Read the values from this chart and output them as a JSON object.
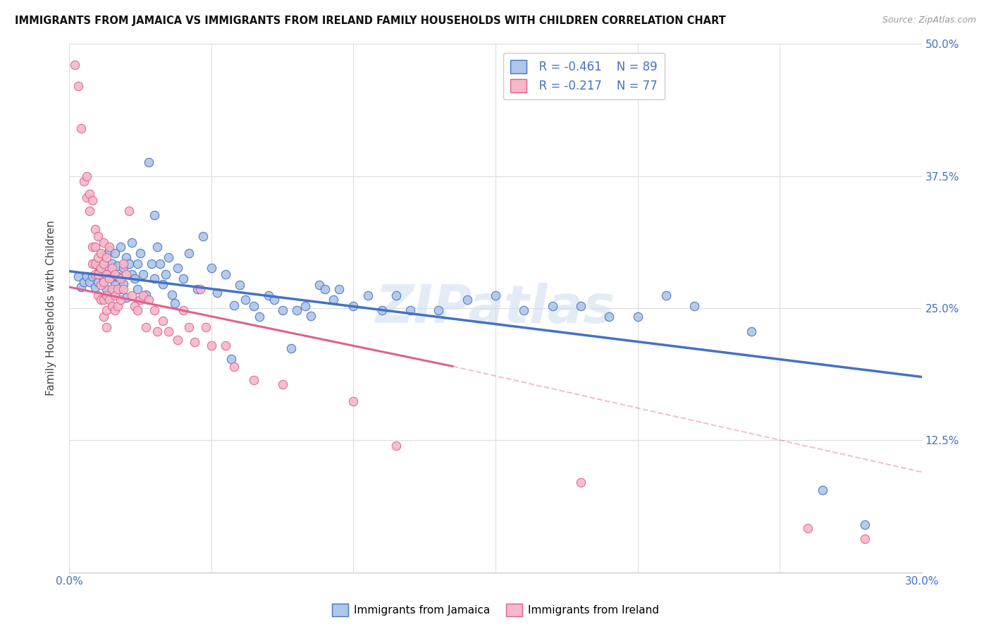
{
  "title": "IMMIGRANTS FROM JAMAICA VS IMMIGRANTS FROM IRELAND FAMILY HOUSEHOLDS WITH CHILDREN CORRELATION CHART",
  "source": "Source: ZipAtlas.com",
  "ylabel": "Family Households with Children",
  "xmin": 0.0,
  "xmax": 0.3,
  "ymin": 0.0,
  "ymax": 0.5,
  "yticks": [
    0.0,
    0.125,
    0.25,
    0.375,
    0.5
  ],
  "ytick_labels": [
    "",
    "12.5%",
    "25.0%",
    "37.5%",
    "50.0%"
  ],
  "xticks": [
    0.0,
    0.05,
    0.1,
    0.15,
    0.2,
    0.25,
    0.3
  ],
  "xtick_labels": [
    "0.0%",
    "",
    "",
    "",
    "",
    "",
    "30.0%"
  ],
  "jamaica_color": "#aec6e8",
  "ireland_color": "#f4b8c8",
  "jamaica_line_color": "#4472c4",
  "ireland_line_color": "#e06090",
  "legend_r_jamaica": "R = -0.461",
  "legend_n_jamaica": "N = 89",
  "legend_r_ireland": "R = -0.217",
  "legend_n_ireland": "N = 77",
  "legend_label_jamaica": "Immigrants from Jamaica",
  "legend_label_ireland": "Immigrants from Ireland",
  "watermark": "ZIPatlas",
  "jamaica_line": [
    0.0,
    0.285,
    0.3,
    0.185
  ],
  "ireland_line_solid": [
    0.0,
    0.27,
    0.135,
    0.195
  ],
  "ireland_line_dashed": [
    0.135,
    0.195,
    0.3,
    0.095
  ],
  "jamaica_points": [
    [
      0.003,
      0.28
    ],
    [
      0.004,
      0.27
    ],
    [
      0.005,
      0.275
    ],
    [
      0.006,
      0.28
    ],
    [
      0.007,
      0.275
    ],
    [
      0.008,
      0.28
    ],
    [
      0.009,
      0.27
    ],
    [
      0.01,
      0.29
    ],
    [
      0.01,
      0.275
    ],
    [
      0.011,
      0.285
    ],
    [
      0.012,
      0.3
    ],
    [
      0.012,
      0.278
    ],
    [
      0.013,
      0.288
    ],
    [
      0.013,
      0.268
    ],
    [
      0.014,
      0.305
    ],
    [
      0.014,
      0.282
    ],
    [
      0.015,
      0.292
    ],
    [
      0.015,
      0.278
    ],
    [
      0.016,
      0.302
    ],
    [
      0.016,
      0.272
    ],
    [
      0.017,
      0.29
    ],
    [
      0.017,
      0.28
    ],
    [
      0.018,
      0.268
    ],
    [
      0.018,
      0.308
    ],
    [
      0.019,
      0.288
    ],
    [
      0.019,
      0.273
    ],
    [
      0.02,
      0.298
    ],
    [
      0.02,
      0.26
    ],
    [
      0.021,
      0.292
    ],
    [
      0.022,
      0.282
    ],
    [
      0.022,
      0.312
    ],
    [
      0.023,
      0.278
    ],
    [
      0.024,
      0.268
    ],
    [
      0.024,
      0.292
    ],
    [
      0.025,
      0.302
    ],
    [
      0.026,
      0.282
    ],
    [
      0.027,
      0.263
    ],
    [
      0.028,
      0.388
    ],
    [
      0.029,
      0.292
    ],
    [
      0.03,
      0.338
    ],
    [
      0.03,
      0.278
    ],
    [
      0.031,
      0.308
    ],
    [
      0.032,
      0.292
    ],
    [
      0.033,
      0.273
    ],
    [
      0.034,
      0.282
    ],
    [
      0.035,
      0.298
    ],
    [
      0.036,
      0.263
    ],
    [
      0.037,
      0.255
    ],
    [
      0.038,
      0.288
    ],
    [
      0.04,
      0.278
    ],
    [
      0.042,
      0.302
    ],
    [
      0.045,
      0.268
    ],
    [
      0.047,
      0.318
    ],
    [
      0.05,
      0.288
    ],
    [
      0.052,
      0.265
    ],
    [
      0.055,
      0.282
    ],
    [
      0.057,
      0.202
    ],
    [
      0.058,
      0.253
    ],
    [
      0.06,
      0.272
    ],
    [
      0.062,
      0.258
    ],
    [
      0.065,
      0.252
    ],
    [
      0.067,
      0.242
    ],
    [
      0.07,
      0.262
    ],
    [
      0.072,
      0.258
    ],
    [
      0.075,
      0.248
    ],
    [
      0.078,
      0.212
    ],
    [
      0.08,
      0.248
    ],
    [
      0.083,
      0.252
    ],
    [
      0.085,
      0.243
    ],
    [
      0.088,
      0.272
    ],
    [
      0.09,
      0.268
    ],
    [
      0.093,
      0.258
    ],
    [
      0.095,
      0.268
    ],
    [
      0.1,
      0.252
    ],
    [
      0.105,
      0.262
    ],
    [
      0.11,
      0.248
    ],
    [
      0.115,
      0.262
    ],
    [
      0.12,
      0.248
    ],
    [
      0.13,
      0.248
    ],
    [
      0.14,
      0.258
    ],
    [
      0.15,
      0.262
    ],
    [
      0.16,
      0.248
    ],
    [
      0.17,
      0.252
    ],
    [
      0.18,
      0.252
    ],
    [
      0.19,
      0.242
    ],
    [
      0.2,
      0.242
    ],
    [
      0.21,
      0.262
    ],
    [
      0.22,
      0.252
    ],
    [
      0.24,
      0.228
    ],
    [
      0.265,
      0.078
    ],
    [
      0.28,
      0.045
    ]
  ],
  "ireland_points": [
    [
      0.002,
      0.48
    ],
    [
      0.003,
      0.46
    ],
    [
      0.004,
      0.42
    ],
    [
      0.005,
      0.37
    ],
    [
      0.006,
      0.355
    ],
    [
      0.006,
      0.375
    ],
    [
      0.007,
      0.358
    ],
    [
      0.007,
      0.342
    ],
    [
      0.008,
      0.352
    ],
    [
      0.008,
      0.308
    ],
    [
      0.008,
      0.292
    ],
    [
      0.009,
      0.325
    ],
    [
      0.009,
      0.308
    ],
    [
      0.009,
      0.292
    ],
    [
      0.009,
      0.282
    ],
    [
      0.01,
      0.318
    ],
    [
      0.01,
      0.298
    ],
    [
      0.01,
      0.282
    ],
    [
      0.01,
      0.262
    ],
    [
      0.011,
      0.302
    ],
    [
      0.011,
      0.288
    ],
    [
      0.011,
      0.272
    ],
    [
      0.011,
      0.258
    ],
    [
      0.012,
      0.312
    ],
    [
      0.012,
      0.292
    ],
    [
      0.012,
      0.275
    ],
    [
      0.012,
      0.258
    ],
    [
      0.012,
      0.242
    ],
    [
      0.013,
      0.298
    ],
    [
      0.013,
      0.282
    ],
    [
      0.013,
      0.262
    ],
    [
      0.013,
      0.248
    ],
    [
      0.013,
      0.232
    ],
    [
      0.014,
      0.308
    ],
    [
      0.014,
      0.278
    ],
    [
      0.014,
      0.258
    ],
    [
      0.015,
      0.288
    ],
    [
      0.015,
      0.268
    ],
    [
      0.015,
      0.252
    ],
    [
      0.016,
      0.282
    ],
    [
      0.016,
      0.262
    ],
    [
      0.016,
      0.248
    ],
    [
      0.017,
      0.268
    ],
    [
      0.017,
      0.252
    ],
    [
      0.018,
      0.278
    ],
    [
      0.018,
      0.258
    ],
    [
      0.019,
      0.292
    ],
    [
      0.019,
      0.268
    ],
    [
      0.02,
      0.282
    ],
    [
      0.021,
      0.342
    ],
    [
      0.022,
      0.262
    ],
    [
      0.023,
      0.252
    ],
    [
      0.024,
      0.248
    ],
    [
      0.025,
      0.258
    ],
    [
      0.026,
      0.262
    ],
    [
      0.027,
      0.232
    ],
    [
      0.028,
      0.258
    ],
    [
      0.03,
      0.248
    ],
    [
      0.031,
      0.228
    ],
    [
      0.033,
      0.238
    ],
    [
      0.035,
      0.228
    ],
    [
      0.038,
      0.22
    ],
    [
      0.04,
      0.248
    ],
    [
      0.042,
      0.232
    ],
    [
      0.044,
      0.218
    ],
    [
      0.046,
      0.268
    ],
    [
      0.048,
      0.232
    ],
    [
      0.05,
      0.215
    ],
    [
      0.055,
      0.215
    ],
    [
      0.058,
      0.195
    ],
    [
      0.065,
      0.182
    ],
    [
      0.075,
      0.178
    ],
    [
      0.1,
      0.162
    ],
    [
      0.115,
      0.12
    ],
    [
      0.18,
      0.085
    ],
    [
      0.26,
      0.042
    ],
    [
      0.28,
      0.032
    ]
  ]
}
